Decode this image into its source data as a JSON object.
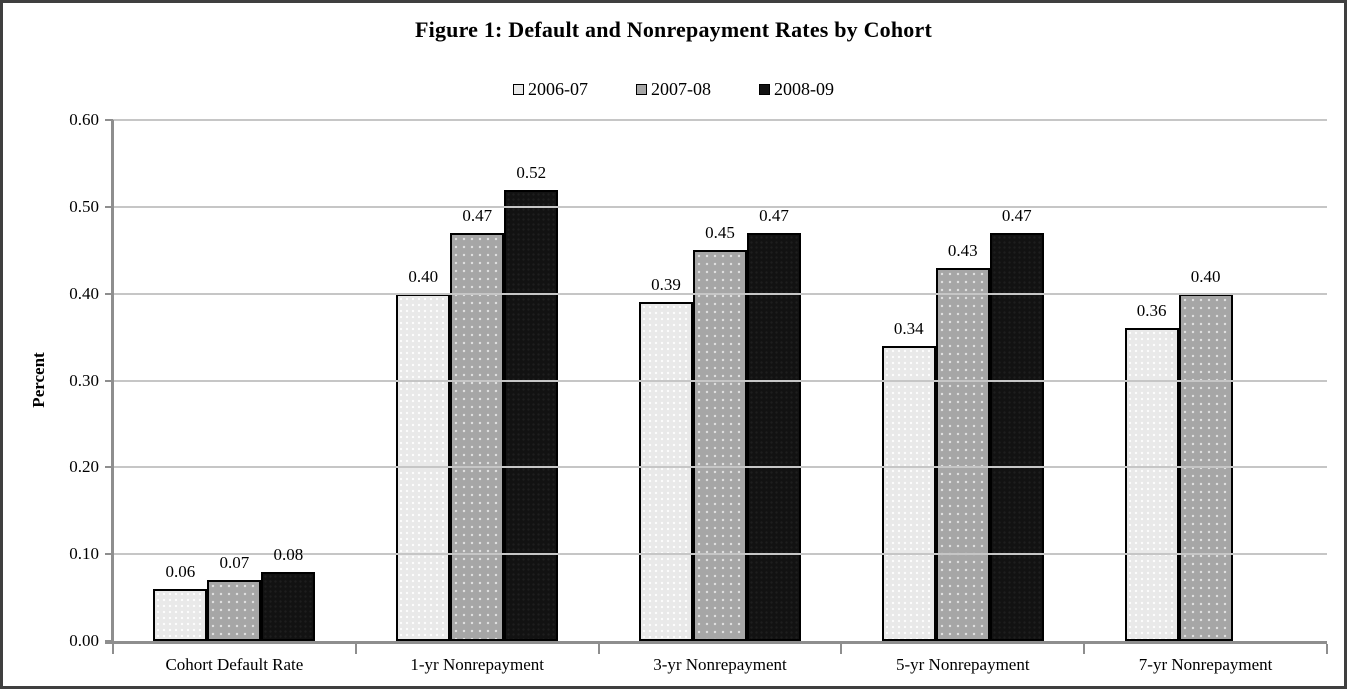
{
  "chart_data": {
    "type": "bar",
    "title": "Figure 1: Default and Nonrepayment Rates by Cohort",
    "xlabel": "",
    "ylabel": "Percent",
    "categories": [
      "Cohort Default Rate",
      "1-yr Nonrepayment",
      "3-yr Nonrepayment",
      "5-yr Nonrepayment",
      "7-yr Nonrepayment"
    ],
    "series": [
      {
        "name": "2006-07",
        "color": "#e9e9e9",
        "values": [
          0.06,
          0.4,
          0.39,
          0.34,
          0.36
        ],
        "labels": [
          "0.06",
          "0.40",
          "0.39",
          "0.34",
          "0.36"
        ]
      },
      {
        "name": "2007-08",
        "color": "#a6a6a6",
        "values": [
          0.07,
          0.47,
          0.45,
          0.43,
          0.4
        ],
        "labels": [
          "0.07",
          "0.47",
          "0.45",
          "0.43",
          "0.40"
        ]
      },
      {
        "name": "2008-09",
        "color": "#121212",
        "values": [
          0.08,
          0.52,
          0.47,
          0.47,
          null
        ],
        "labels": [
          "0.08",
          "0.52",
          "0.47",
          "0.47",
          null
        ]
      }
    ],
    "ylim": [
      0.0,
      0.6
    ],
    "ytick_labels": [
      "0.00",
      "0.10",
      "0.20",
      "0.30",
      "0.40",
      "0.50",
      "0.60"
    ],
    "grid": true,
    "legend_position": "top-center",
    "axis_color": "#8e8e8e",
    "gridline_color": "#c6c6c6"
  }
}
